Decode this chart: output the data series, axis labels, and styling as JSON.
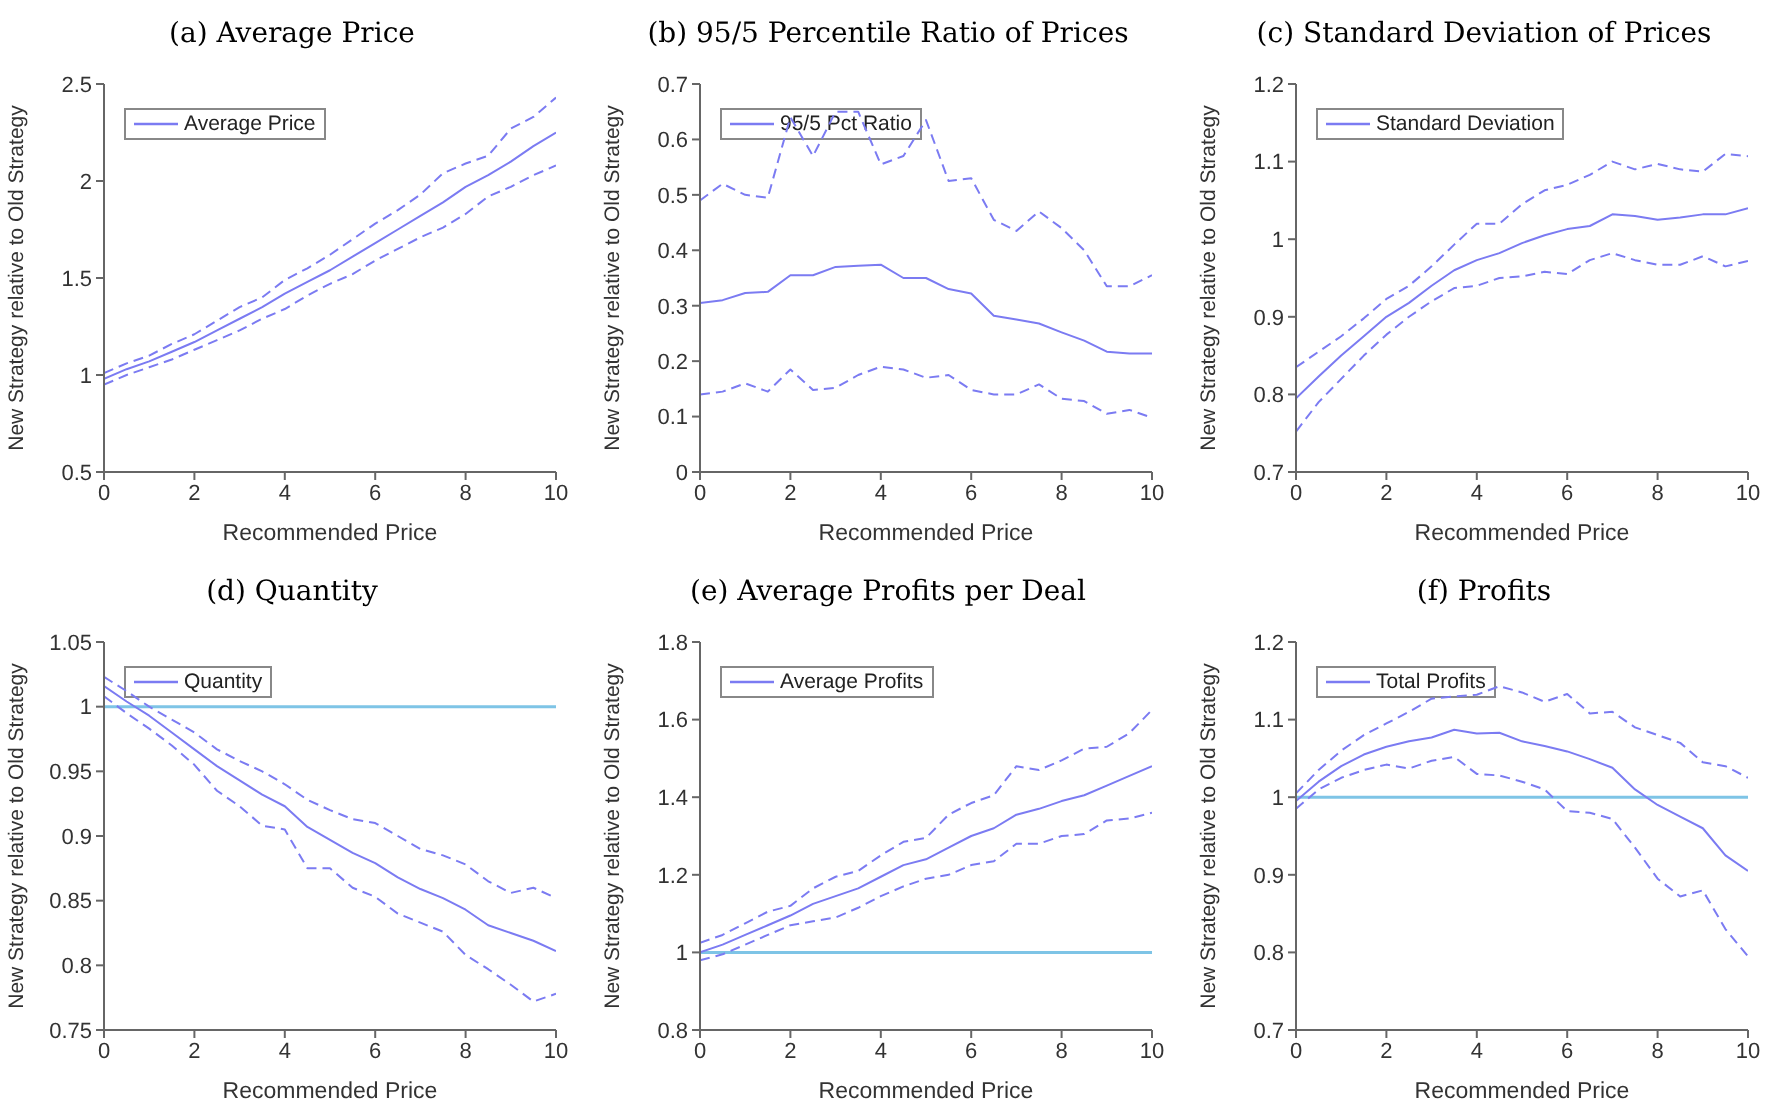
{
  "chart_data": [
    {
      "type": "line",
      "title": "(a) Average Price",
      "xlabel": "Recommended Price",
      "ylabel": "New Strategy relative to Old Strategy",
      "x": [
        0,
        0.5,
        1,
        1.5,
        2,
        2.5,
        3,
        3.5,
        4,
        4.5,
        5,
        5.5,
        6,
        6.5,
        7,
        7.5,
        8,
        8.5,
        9,
        9.5,
        10
      ],
      "xlim": [
        0,
        10
      ],
      "xticks": [
        0,
        2,
        4,
        6,
        8,
        10
      ],
      "ylim": [
        0.5,
        2.5
      ],
      "yticks": [
        0.5,
        1,
        1.5,
        2,
        2.5
      ],
      "legend": "top left",
      "marker": "none",
      "series": [
        {
          "name": "Average Price",
          "color": "#7b7bf2",
          "line_style": "solid",
          "values": [
            0.98,
            1.03,
            1.07,
            1.12,
            1.17,
            1.23,
            1.29,
            1.35,
            1.42,
            1.48,
            1.54,
            1.61,
            1.68,
            1.75,
            1.82,
            1.89,
            1.97,
            2.03,
            2.1,
            2.18,
            2.25
          ]
        },
        {
          "color": "#7b7bf2",
          "line_style": "dashed",
          "values": [
            1.01,
            1.06,
            1.1,
            1.16,
            1.21,
            1.28,
            1.35,
            1.4,
            1.49,
            1.55,
            1.62,
            1.7,
            1.78,
            1.85,
            1.93,
            2.04,
            2.09,
            2.13,
            2.27,
            2.33,
            2.43
          ]
        },
        {
          "color": "#7b7bf2",
          "line_style": "dashed",
          "values": [
            0.95,
            1.0,
            1.04,
            1.08,
            1.13,
            1.18,
            1.23,
            1.29,
            1.34,
            1.41,
            1.47,
            1.52,
            1.59,
            1.65,
            1.71,
            1.76,
            1.83,
            1.92,
            1.97,
            2.03,
            2.08
          ]
        }
      ]
    },
    {
      "type": "line",
      "title": "(b) 95/5 Percentile Ratio of Prices",
      "xlabel": "Recommended Price",
      "ylabel": "New Strategy relative to Old Strategy",
      "x": [
        0,
        0.5,
        1,
        1.5,
        2,
        2.5,
        3,
        3.5,
        4,
        4.5,
        5,
        5.5,
        6,
        6.5,
        7,
        7.5,
        8,
        8.5,
        9,
        9.5,
        10
      ],
      "xlim": [
        0,
        10
      ],
      "xticks": [
        0,
        2,
        4,
        6,
        8,
        10
      ],
      "ylim": [
        0,
        0.7
      ],
      "yticks": [
        0,
        0.1,
        0.2,
        0.3,
        0.4,
        0.5,
        0.6,
        0.7
      ],
      "legend": "top left",
      "marker": "none",
      "series": [
        {
          "name": "95/5 Pct Ratio",
          "color": "#7b7bf2",
          "line_style": "solid",
          "values": [
            0.305,
            0.31,
            0.323,
            0.325,
            0.355,
            0.355,
            0.37,
            0.372,
            0.374,
            0.35,
            0.35,
            0.33,
            0.322,
            0.282,
            0.275,
            0.268,
            0.252,
            0.237,
            0.217,
            0.214,
            0.214
          ]
        },
        {
          "color": "#7b7bf2",
          "line_style": "dashed",
          "values": [
            0.49,
            0.52,
            0.5,
            0.495,
            0.64,
            0.57,
            0.65,
            0.65,
            0.555,
            0.57,
            0.635,
            0.525,
            0.53,
            0.455,
            0.435,
            0.47,
            0.44,
            0.4,
            0.335,
            0.335,
            0.355
          ]
        },
        {
          "color": "#7b7bf2",
          "line_style": "dashed",
          "values": [
            0.14,
            0.145,
            0.16,
            0.145,
            0.185,
            0.148,
            0.152,
            0.175,
            0.19,
            0.185,
            0.17,
            0.175,
            0.148,
            0.14,
            0.14,
            0.158,
            0.132,
            0.128,
            0.105,
            0.112,
            0.098
          ]
        }
      ]
    },
    {
      "type": "line",
      "title": "(c) Standard Deviation of Prices",
      "xlabel": "Recommended Price",
      "ylabel": "New Strategy relative to Old Strategy",
      "x": [
        0,
        0.5,
        1,
        1.5,
        2,
        2.5,
        3,
        3.5,
        4,
        4.5,
        5,
        5.5,
        6,
        6.5,
        7,
        7.5,
        8,
        8.5,
        9,
        9.5,
        10
      ],
      "xlim": [
        0,
        10
      ],
      "xticks": [
        0,
        2,
        4,
        6,
        8,
        10
      ],
      "ylim": [
        0.7,
        1.2
      ],
      "yticks": [
        0.7,
        0.8,
        0.9,
        1,
        1.1,
        1.2
      ],
      "legend": "top left",
      "marker": "none",
      "series": [
        {
          "name": "Standard Deviation",
          "color": "#7b7bf2",
          "line_style": "solid",
          "values": [
            0.795,
            0.823,
            0.85,
            0.875,
            0.9,
            0.918,
            0.94,
            0.96,
            0.973,
            0.982,
            0.995,
            1.005,
            1.013,
            1.017,
            1.032,
            1.03,
            1.025,
            1.028,
            1.032,
            1.032,
            1.04
          ]
        },
        {
          "color": "#7b7bf2",
          "line_style": "dashed",
          "values": [
            0.835,
            0.855,
            0.875,
            0.898,
            0.923,
            0.94,
            0.965,
            0.993,
            1.02,
            1.02,
            1.045,
            1.063,
            1.07,
            1.083,
            1.1,
            1.09,
            1.097,
            1.09,
            1.087,
            1.11,
            1.107
          ]
        },
        {
          "color": "#7b7bf2",
          "line_style": "dashed",
          "values": [
            0.752,
            0.79,
            0.82,
            0.85,
            0.877,
            0.9,
            0.92,
            0.937,
            0.94,
            0.95,
            0.952,
            0.958,
            0.955,
            0.973,
            0.982,
            0.973,
            0.967,
            0.967,
            0.978,
            0.965,
            0.972
          ]
        }
      ]
    },
    {
      "type": "line",
      "title": "(d) Quantity",
      "xlabel": "Recommended Price",
      "ylabel": "New Strategy relative to Old Strategy",
      "x": [
        0,
        0.5,
        1,
        1.5,
        2,
        2.5,
        3,
        3.5,
        4,
        4.5,
        5,
        5.5,
        6,
        6.5,
        7,
        7.5,
        8,
        8.5,
        9,
        9.5,
        10
      ],
      "xlim": [
        0,
        10
      ],
      "xticks": [
        0,
        2,
        4,
        6,
        8,
        10
      ],
      "ylim": [
        0.75,
        1.05
      ],
      "yticks": [
        0.75,
        0.8,
        0.85,
        0.9,
        0.95,
        1,
        1.05
      ],
      "legend": "top left",
      "marker": "none",
      "ref_lines": [
        {
          "axis": "y",
          "value": 1,
          "color": "#7ec4e6"
        }
      ],
      "series": [
        {
          "name": "Quantity",
          "color": "#7b7bf2",
          "line_style": "solid",
          "values": [
            1.016,
            1.004,
            0.993,
            0.98,
            0.967,
            0.954,
            0.943,
            0.932,
            0.923,
            0.907,
            0.897,
            0.887,
            0.879,
            0.868,
            0.859,
            0.852,
            0.843,
            0.831,
            0.825,
            0.819,
            0.811
          ]
        },
        {
          "color": "#7b7bf2",
          "line_style": "dashed",
          "values": [
            1.023,
            1.012,
            1.0,
            0.99,
            0.98,
            0.967,
            0.958,
            0.95,
            0.94,
            0.928,
            0.92,
            0.913,
            0.91,
            0.9,
            0.89,
            0.885,
            0.878,
            0.865,
            0.856,
            0.86,
            0.852
          ]
        },
        {
          "color": "#7b7bf2",
          "line_style": "dashed",
          "values": [
            1.008,
            0.995,
            0.983,
            0.97,
            0.955,
            0.935,
            0.923,
            0.908,
            0.905,
            0.875,
            0.875,
            0.86,
            0.853,
            0.84,
            0.833,
            0.826,
            0.808,
            0.797,
            0.785,
            0.772,
            0.778
          ]
        }
      ]
    },
    {
      "type": "line",
      "title": "(e) Average Profits per Deal",
      "xlabel": "Recommended Price",
      "ylabel": "New Strategy relative to Old Strategy",
      "x": [
        0,
        0.5,
        1,
        1.5,
        2,
        2.5,
        3,
        3.5,
        4,
        4.5,
        5,
        5.5,
        6,
        6.5,
        7,
        7.5,
        8,
        8.5,
        9,
        9.5,
        10
      ],
      "xlim": [
        0,
        10
      ],
      "xticks": [
        0,
        2,
        4,
        6,
        8,
        10
      ],
      "ylim": [
        0.8,
        1.8
      ],
      "yticks": [
        0.8,
        1,
        1.2,
        1.4,
        1.6,
        1.8
      ],
      "legend": "top left",
      "marker": "none",
      "ref_lines": [
        {
          "axis": "y",
          "value": 1,
          "color": "#7ec4e6"
        }
      ],
      "series": [
        {
          "name": "Average Profits",
          "color": "#7b7bf2",
          "line_style": "solid",
          "values": [
            1.0,
            1.02,
            1.045,
            1.07,
            1.095,
            1.125,
            1.145,
            1.165,
            1.195,
            1.225,
            1.24,
            1.27,
            1.3,
            1.32,
            1.355,
            1.37,
            1.39,
            1.405,
            1.43,
            1.455,
            1.48
          ]
        },
        {
          "color": "#7b7bf2",
          "line_style": "dashed",
          "values": [
            1.025,
            1.045,
            1.075,
            1.105,
            1.12,
            1.165,
            1.195,
            1.21,
            1.25,
            1.285,
            1.295,
            1.355,
            1.385,
            1.405,
            1.48,
            1.47,
            1.495,
            1.525,
            1.53,
            1.565,
            1.625
          ]
        },
        {
          "color": "#7b7bf2",
          "line_style": "dashed",
          "values": [
            0.98,
            0.995,
            1.02,
            1.045,
            1.07,
            1.08,
            1.09,
            1.115,
            1.145,
            1.17,
            1.19,
            1.2,
            1.225,
            1.235,
            1.28,
            1.28,
            1.3,
            1.305,
            1.34,
            1.345,
            1.36
          ]
        }
      ]
    },
    {
      "type": "line",
      "title": "(f) Profits",
      "xlabel": "Recommended Price",
      "ylabel": "New Strategy relative to Old Strategy",
      "x": [
        0,
        0.5,
        1,
        1.5,
        2,
        2.5,
        3,
        3.5,
        4,
        4.5,
        5,
        5.5,
        6,
        6.5,
        7,
        7.5,
        8,
        8.5,
        9,
        9.5,
        10
      ],
      "xlim": [
        0,
        10
      ],
      "xticks": [
        0,
        2,
        4,
        6,
        8,
        10
      ],
      "ylim": [
        0.7,
        1.2
      ],
      "yticks": [
        0.7,
        0.8,
        0.9,
        1,
        1.1,
        1.2
      ],
      "legend": "top left",
      "marker": "none",
      "ref_lines": [
        {
          "axis": "y",
          "value": 1,
          "color": "#7ec4e6"
        }
      ],
      "series": [
        {
          "name": "Total Profits",
          "color": "#7b7bf2",
          "line_style": "solid",
          "values": [
            0.995,
            1.02,
            1.04,
            1.055,
            1.065,
            1.072,
            1.077,
            1.087,
            1.082,
            1.083,
            1.072,
            1.066,
            1.059,
            1.049,
            1.038,
            1.01,
            0.99,
            0.975,
            0.96,
            0.925,
            0.905
          ]
        },
        {
          "color": "#7b7bf2",
          "line_style": "dashed",
          "values": [
            1.005,
            1.035,
            1.06,
            1.08,
            1.095,
            1.11,
            1.127,
            1.13,
            1.132,
            1.143,
            1.135,
            1.123,
            1.133,
            1.108,
            1.11,
            1.09,
            1.08,
            1.07,
            1.045,
            1.04,
            1.025
          ]
        },
        {
          "color": "#7b7bf2",
          "line_style": "dashed",
          "values": [
            0.985,
            1.01,
            1.025,
            1.035,
            1.042,
            1.037,
            1.047,
            1.052,
            1.03,
            1.028,
            1.02,
            1.01,
            0.982,
            0.98,
            0.972,
            0.935,
            0.895,
            0.872,
            0.88,
            0.83,
            0.795
          ]
        }
      ]
    }
  ]
}
